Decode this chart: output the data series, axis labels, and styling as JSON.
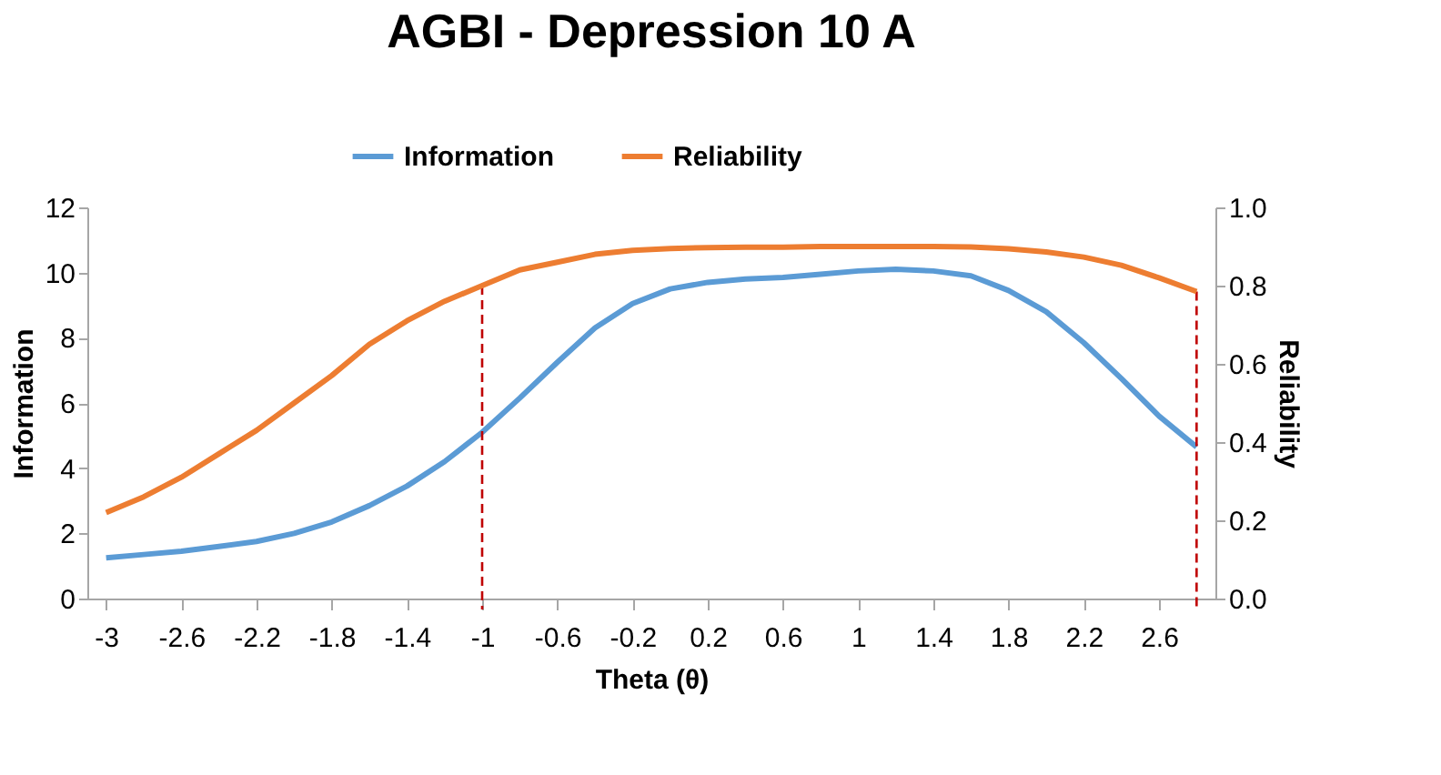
{
  "chart_data": {
    "type": "line",
    "title": "AGBI - Depression 10 A",
    "xlabel": "Theta (θ)",
    "ylabel": "Information",
    "y2label": "Reliability",
    "x": [
      -3,
      -2.8,
      -2.6,
      -2.4,
      -2.2,
      -2,
      -1.8,
      -1.6,
      -1.4,
      -1.2,
      -1,
      -0.8,
      -0.6,
      -0.4,
      -0.2,
      0,
      0.2,
      0.4,
      0.6,
      0.8,
      1,
      1.2,
      1.4,
      1.6,
      1.8,
      2,
      2.2,
      2.4,
      2.6,
      2.8
    ],
    "series": [
      {
        "name": "Information",
        "color": "#5b9bd5",
        "values": [
          1.25,
          1.35,
          1.45,
          1.6,
          1.75,
          2.0,
          2.35,
          2.85,
          3.45,
          4.2,
          5.1,
          6.15,
          7.25,
          8.3,
          9.05,
          9.5,
          9.7,
          9.8,
          9.85,
          9.95,
          10.05,
          10.1,
          10.05,
          9.9,
          9.45,
          8.8,
          7.85,
          6.75,
          5.6,
          4.65
        ]
      },
      {
        "name": "Reliability",
        "color": "#ed7d31",
        "axis": "y2",
        "values": [
          0.22,
          0.26,
          0.31,
          0.37,
          0.43,
          0.5,
          0.57,
          0.65,
          0.71,
          0.76,
          0.8,
          0.84,
          0.86,
          0.88,
          0.89,
          0.895,
          0.897,
          0.898,
          0.898,
          0.9,
          0.9,
          0.9,
          0.9,
          0.899,
          0.894,
          0.886,
          0.873,
          0.852,
          0.82,
          0.785
        ]
      }
    ],
    "xlim": [
      -3.1,
      2.9
    ],
    "xticks": [
      -3,
      -2.6,
      -2.2,
      -1.8,
      -1.4,
      -1,
      -0.6,
      -0.2,
      0.2,
      0.6,
      1,
      1.4,
      1.8,
      2.2,
      2.6
    ],
    "ylim": [
      0,
      12
    ],
    "yticks": [
      0,
      2,
      4,
      6,
      8,
      10,
      12
    ],
    "y2lim": [
      0,
      1
    ],
    "y2ticks": [
      {
        "value": 0,
        "label": "0.0"
      },
      {
        "value": 0.2,
        "label": "0.2"
      },
      {
        "value": 0.4,
        "label": "0.4"
      },
      {
        "value": 0.6,
        "label": "0.6"
      },
      {
        "value": 0.8,
        "label": "0.8"
      },
      {
        "value": 1,
        "label": "1.0"
      }
    ],
    "ref_lines": [
      {
        "axis": "x",
        "value": -1,
        "color": "#c00000",
        "line_style": "dashed"
      },
      {
        "axis": "x",
        "value": 2.8,
        "color": "#c00000",
        "line_style": "dashed"
      }
    ],
    "grid": false,
    "legend": "top",
    "marker": "none",
    "line_style": "solid"
  }
}
